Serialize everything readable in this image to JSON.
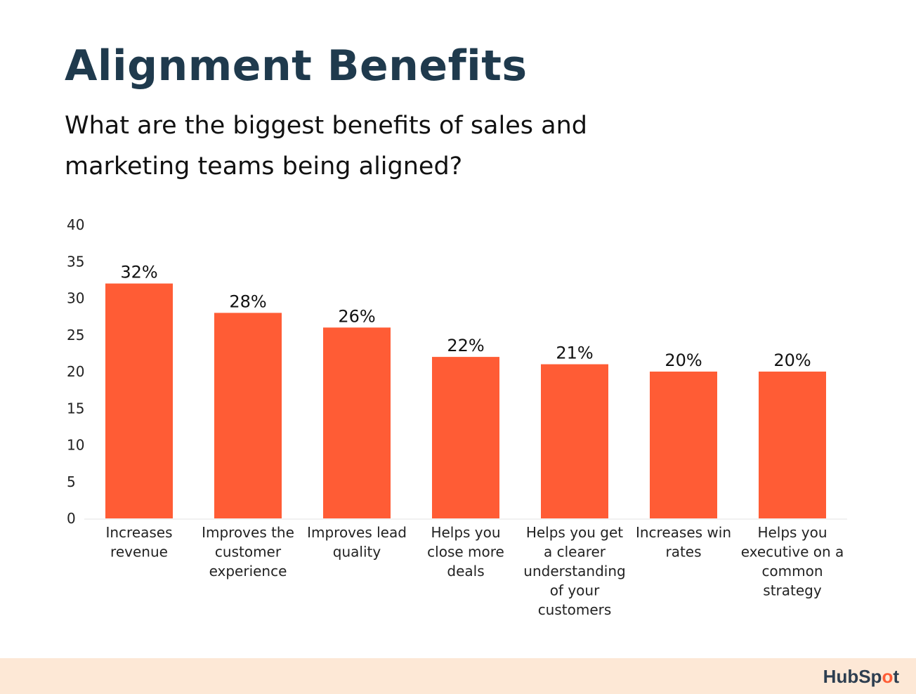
{
  "header": {
    "title": "Alignment Benefits",
    "subtitle": "What are the biggest benefits of sales and marketing teams being aligned?"
  },
  "colors": {
    "bar": "#ff5c35",
    "title": "#1f3a4d",
    "footer": "#fde8d6",
    "brand_accent": "#ff5c35"
  },
  "chart_data": {
    "type": "bar",
    "categories": [
      [
        "Increases",
        "revenue"
      ],
      [
        "Improves the",
        "customer",
        "experience"
      ],
      [
        "Improves lead",
        "quality"
      ],
      [
        "Helps you",
        "close more",
        "deals"
      ],
      [
        "Helps you get",
        "a clearer",
        "understanding",
        "of your",
        "customers"
      ],
      [
        "Increases win",
        "rates"
      ],
      [
        "Helps you",
        "executive on a",
        "common",
        "strategy"
      ]
    ],
    "values": [
      32,
      28,
      26,
      22,
      21,
      20,
      20
    ],
    "data_labels": [
      "32%",
      "28%",
      "26%",
      "22%",
      "21%",
      "20%",
      "20%"
    ],
    "yticks": [
      "0",
      "5",
      "10",
      "15",
      "20",
      "25",
      "30",
      "35",
      "40"
    ],
    "ylim": [
      0,
      40
    ],
    "grid": false,
    "legend": "none"
  },
  "footer": {
    "brand_part1": "HubSp",
    "brand_accent": "o",
    "brand_part2": "t"
  }
}
